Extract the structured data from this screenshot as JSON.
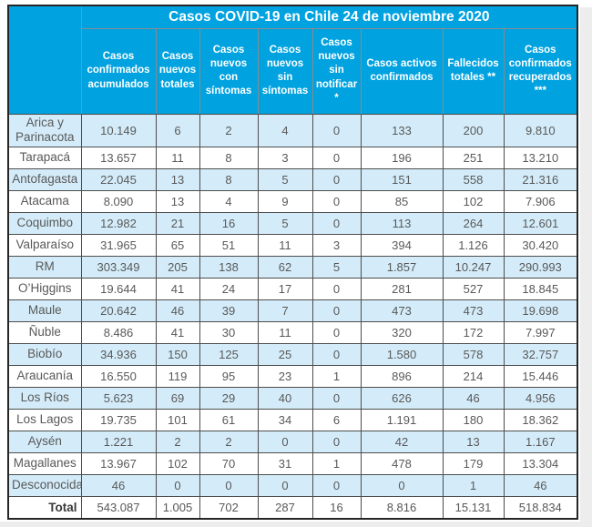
{
  "chart_data": {
    "type": "table",
    "title": "Casos COVID-19 en Chile 24 de noviembre 2020",
    "columns": [
      "Casos confirmados acumulados",
      "Casos nuevos totales",
      "Casos nuevos con síntomas",
      "Casos nuevos sin síntomas",
      "Casos nuevos sin notificar *",
      "Casos activos confirmados",
      "Fallecidos totales **",
      "Casos confirmados recuperados ***"
    ],
    "rows": [
      {
        "region": "Arica y Parinacota",
        "values": [
          "10.149",
          "6",
          "2",
          "4",
          "0",
          "133",
          "200",
          "9.810"
        ]
      },
      {
        "region": "Tarapacá",
        "values": [
          "13.657",
          "11",
          "8",
          "3",
          "0",
          "196",
          "251",
          "13.210"
        ]
      },
      {
        "region": "Antofagasta",
        "values": [
          "22.045",
          "13",
          "8",
          "5",
          "0",
          "151",
          "558",
          "21.316"
        ]
      },
      {
        "region": "Atacama",
        "values": [
          "8.090",
          "13",
          "4",
          "9",
          "0",
          "85",
          "102",
          "7.906"
        ]
      },
      {
        "region": "Coquimbo",
        "values": [
          "12.982",
          "21",
          "16",
          "5",
          "0",
          "113",
          "264",
          "12.601"
        ]
      },
      {
        "region": "Valparaíso",
        "values": [
          "31.965",
          "65",
          "51",
          "11",
          "3",
          "394",
          "1.126",
          "30.420"
        ]
      },
      {
        "region": "RM",
        "values": [
          "303.349",
          "205",
          "138",
          "62",
          "5",
          "1.857",
          "10.247",
          "290.993"
        ]
      },
      {
        "region": "O’Higgins",
        "values": [
          "19.644",
          "41",
          "24",
          "17",
          "0",
          "281",
          "527",
          "18.845"
        ]
      },
      {
        "region": "Maule",
        "values": [
          "20.642",
          "46",
          "39",
          "7",
          "0",
          "473",
          "473",
          "19.698"
        ]
      },
      {
        "region": "Ñuble",
        "values": [
          "8.486",
          "41",
          "30",
          "11",
          "0",
          "320",
          "172",
          "7.997"
        ]
      },
      {
        "region": "Biobío",
        "values": [
          "34.936",
          "150",
          "125",
          "25",
          "0",
          "1.580",
          "578",
          "32.757"
        ]
      },
      {
        "region": "Araucanía",
        "values": [
          "16.550",
          "119",
          "95",
          "23",
          "1",
          "896",
          "214",
          "15.446"
        ]
      },
      {
        "region": "Los Ríos",
        "values": [
          "5.623",
          "69",
          "29",
          "40",
          "0",
          "626",
          "46",
          "4.956"
        ]
      },
      {
        "region": "Los Lagos",
        "values": [
          "19.735",
          "101",
          "61",
          "34",
          "6",
          "1.191",
          "180",
          "18.362"
        ]
      },
      {
        "region": "Aysén",
        "values": [
          "1.221",
          "2",
          "2",
          "0",
          "0",
          "42",
          "13",
          "1.167"
        ]
      },
      {
        "region": "Magallanes",
        "values": [
          "13.967",
          "102",
          "70",
          "31",
          "1",
          "478",
          "179",
          "13.304"
        ]
      },
      {
        "region": "Desconocida",
        "values": [
          "46",
          "0",
          "0",
          "0",
          "0",
          "0",
          "1",
          "46"
        ]
      }
    ],
    "total": {
      "label": "Total",
      "values": [
        "543.087",
        "1.005",
        "702",
        "287",
        "16",
        "8.816",
        "15.131",
        "518.834"
      ]
    },
    "layout_hints": {
      "striped_rows": true,
      "first_data_row_striped": true,
      "grid": true
    }
  },
  "colors": {
    "header_blue": "#00a2df",
    "row_stripe_blue": "#d4ecf9",
    "cell_text": "#595959",
    "grid_line": "#4d4d4d",
    "header_grid_line": "#8c8c8c",
    "outer_border": "#262626",
    "header_text": "#ffffff",
    "page_edge_gray": "#ededed"
  }
}
